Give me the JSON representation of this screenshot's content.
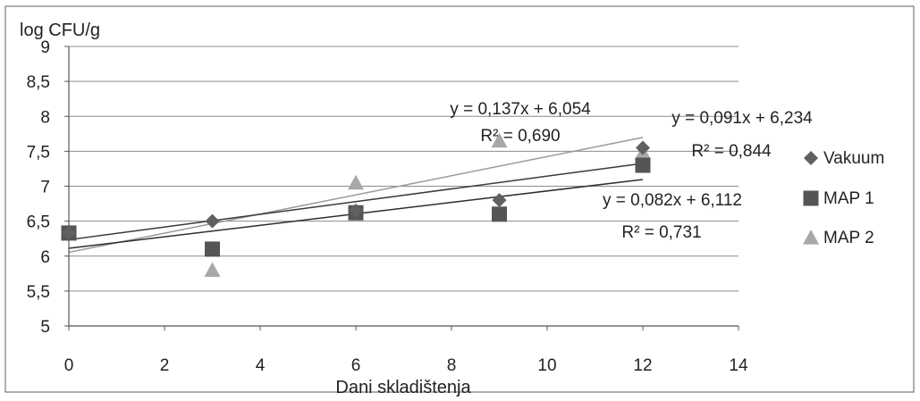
{
  "chart_data": {
    "type": "scatter",
    "title": "",
    "ylabel": "log CFU/g",
    "xlabel": "Dani skladištenja",
    "xlim": [
      0,
      14
    ],
    "ylim": [
      5,
      9
    ],
    "x_ticks": [
      "0",
      "2",
      "4",
      "6",
      "8",
      "10",
      "12",
      "14"
    ],
    "y_ticks": [
      "5",
      "5,5",
      "6",
      "6,5",
      "7",
      "7,5",
      "8",
      "8,5",
      "9"
    ],
    "grid": "horizontal",
    "legend_position": "right",
    "series": [
      {
        "name": "Vakuum",
        "marker": "diamond",
        "color": "#606060",
        "x": [
          0,
          3,
          6,
          9,
          12
        ],
        "y": [
          6.33,
          6.5,
          6.65,
          6.8,
          7.55
        ],
        "trend": {
          "slope": 0.091,
          "intercept": 6.234,
          "equation": "y = 0,091x + 6,234",
          "r2": "R² = 0,844"
        }
      },
      {
        "name": "MAP 1",
        "marker": "square",
        "color": "#555555",
        "x": [
          0,
          3,
          6,
          9,
          12
        ],
        "y": [
          6.33,
          6.1,
          6.62,
          6.6,
          7.3
        ],
        "trend": {
          "slope": 0.082,
          "intercept": 6.112,
          "equation": "y = 0,082x + 6,112",
          "r2": "R² = 0,731"
        }
      },
      {
        "name": "MAP 2",
        "marker": "triangle",
        "color": "#a8a8a8",
        "x": [
          0,
          3,
          6,
          9,
          12
        ],
        "y": [
          6.33,
          5.8,
          7.05,
          7.65,
          7.48
        ],
        "trend": {
          "slope": 0.137,
          "intercept": 6.054,
          "equation": "y = 0,137x + 6,054",
          "r2": "R² = 0,690"
        }
      }
    ]
  }
}
